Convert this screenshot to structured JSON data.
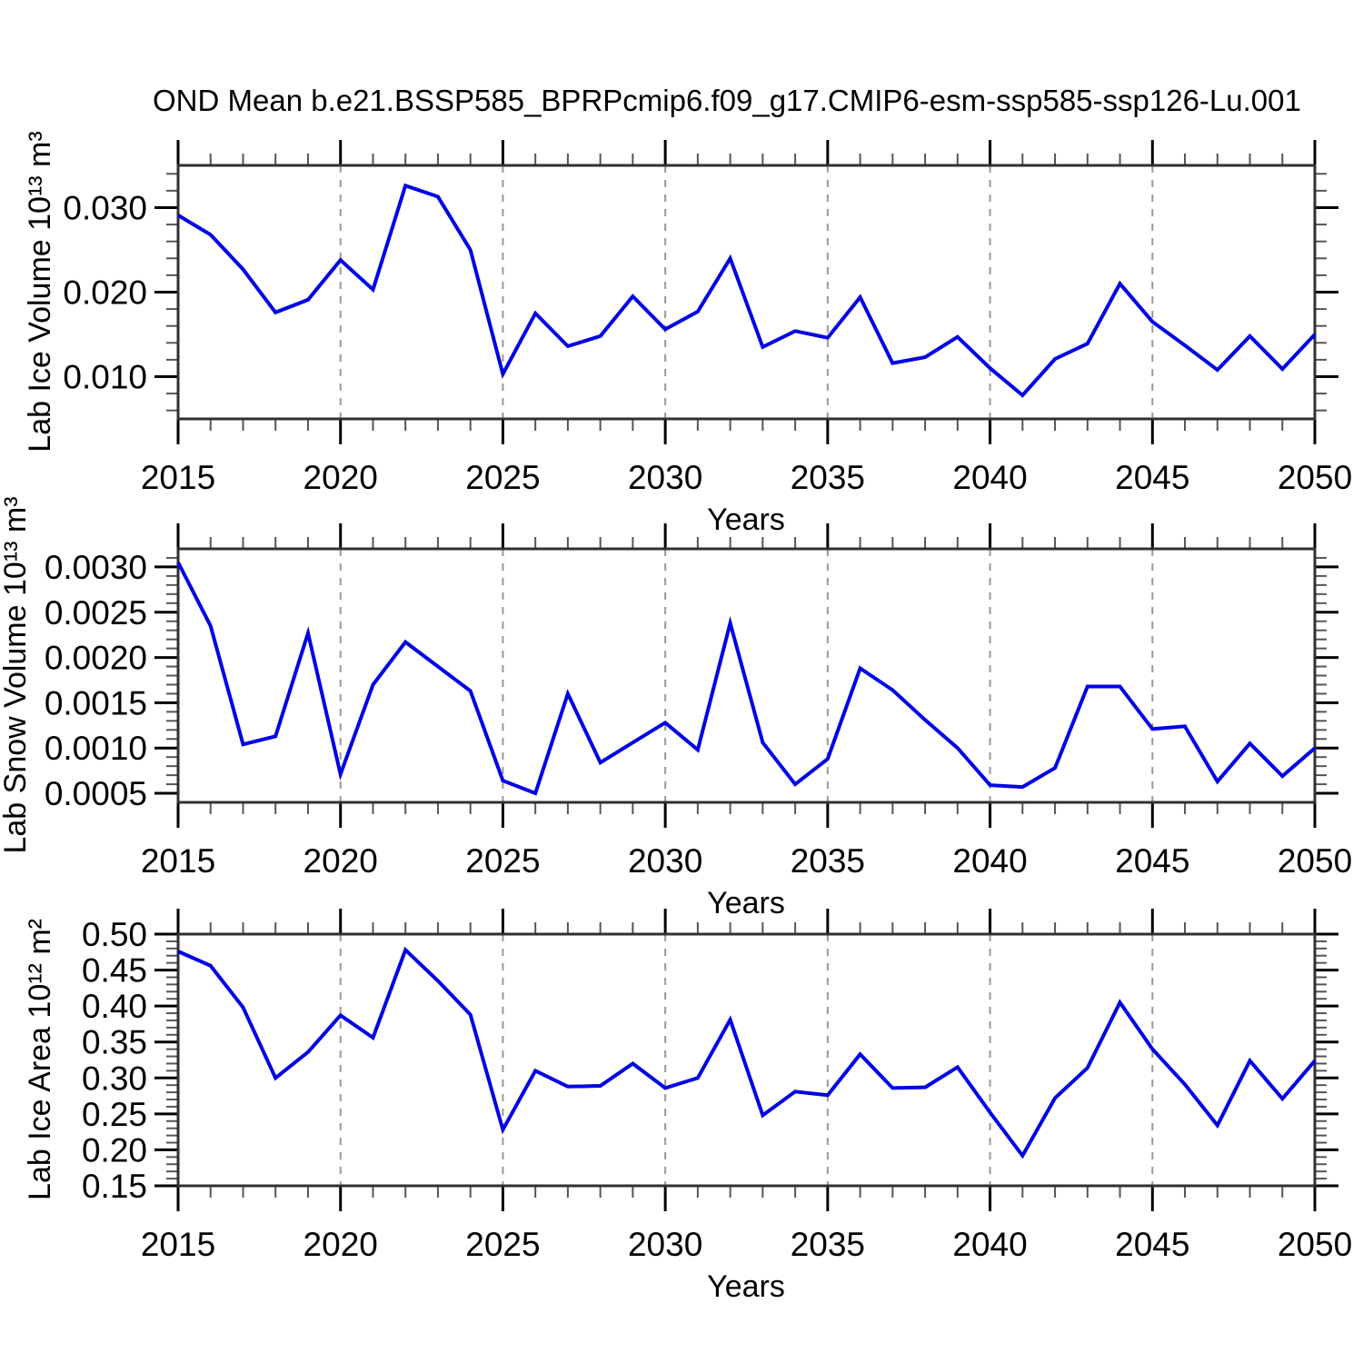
{
  "title": "OND Mean b.e21.BSSP585_BPRPcmip6.f09_g17.CMIP6-esm-ssp585-ssp126-Lu.001",
  "colors": {
    "line": "#0000e6",
    "gridline": "#999999",
    "axis": "#303030",
    "minor_tick": "#555555",
    "background": "#ffffff"
  },
  "chart_data": [
    {
      "type": "line",
      "ylabel": "Lab Ice Volume 10¹³ m³",
      "xlabel": "Years",
      "xlim": [
        2015,
        2050
      ],
      "ylim": [
        0.005,
        0.035
      ],
      "ytick_values": [
        0.01,
        0.02,
        0.03
      ],
      "ytick_labels": [
        "0.010",
        "0.020",
        "0.030"
      ],
      "y_minor_step": 0.002,
      "xtick_major_step": 5,
      "x_minor_step": 1,
      "gridlines_x": [
        2020,
        2025,
        2030,
        2035,
        2040,
        2045
      ],
      "x": [
        2015,
        2016,
        2017,
        2018,
        2019,
        2020,
        2021,
        2022,
        2023,
        2024,
        2025,
        2026,
        2027,
        2028,
        2029,
        2030,
        2031,
        2032,
        2033,
        2034,
        2035,
        2036,
        2037,
        2038,
        2039,
        2040,
        2041,
        2042,
        2043,
        2044,
        2045,
        2046,
        2047,
        2048,
        2049,
        2050
      ],
      "values": [
        0.0291,
        0.0268,
        0.0227,
        0.0176,
        0.0191,
        0.0238,
        0.0203,
        0.0326,
        0.0313,
        0.025,
        0.0103,
        0.0175,
        0.0136,
        0.0148,
        0.0195,
        0.0156,
        0.0177,
        0.024,
        0.0135,
        0.0154,
        0.0146,
        0.0194,
        0.0116,
        0.0123,
        0.0147,
        0.011,
        0.0078,
        0.0121,
        0.0139,
        0.021,
        0.0165,
        0.0137,
        0.0108,
        0.0148,
        0.0109,
        0.015
      ]
    },
    {
      "type": "line",
      "ylabel": "Lab Snow Volume 10¹³ m³",
      "xlabel": "Years",
      "xlim": [
        2015,
        2050
      ],
      "ylim": [
        0.0004,
        0.0032
      ],
      "ytick_values": [
        0.0005,
        0.001,
        0.0015,
        0.002,
        0.0025,
        0.003
      ],
      "ytick_labels": [
        "0.0005",
        "0.0010",
        "0.0015",
        "0.0020",
        "0.0025",
        "0.0030"
      ],
      "y_minor_step": 0.0001,
      "xtick_major_step": 5,
      "x_minor_step": 1,
      "gridlines_x": [
        2020,
        2025,
        2030,
        2035,
        2040,
        2045
      ],
      "x": [
        2015,
        2016,
        2017,
        2018,
        2019,
        2020,
        2021,
        2022,
        2023,
        2024,
        2025,
        2026,
        2027,
        2028,
        2029,
        2030,
        2031,
        2032,
        2033,
        2034,
        2035,
        2036,
        2037,
        2038,
        2039,
        2040,
        2041,
        2042,
        2043,
        2044,
        2045,
        2046,
        2047,
        2048,
        2049,
        2050
      ],
      "values": [
        0.00305,
        0.00235,
        0.00104,
        0.00113,
        0.00227,
        0.00071,
        0.0017,
        0.00217,
        0.0019,
        0.00163,
        0.00064,
        0.0005,
        0.0016,
        0.00084,
        0.00106,
        0.00128,
        0.00098,
        0.00238,
        0.00106,
        0.0006,
        0.00088,
        0.00188,
        0.00164,
        0.00131,
        0.001,
        0.00059,
        0.00057,
        0.00078,
        0.00168,
        0.00168,
        0.00121,
        0.00124,
        0.00063,
        0.00105,
        0.00069,
        0.001
      ]
    },
    {
      "type": "line",
      "ylabel": "Lab Ice Area 10¹² m²",
      "xlabel": "Years",
      "xlim": [
        2015,
        2050
      ],
      "ylim": [
        0.15,
        0.5
      ],
      "ytick_values": [
        0.15,
        0.2,
        0.25,
        0.3,
        0.35,
        0.4,
        0.45,
        0.5
      ],
      "ytick_labels": [
        "0.15",
        "0.20",
        "0.25",
        "0.30",
        "0.35",
        "0.40",
        "0.45",
        "0.50"
      ],
      "y_minor_step": 0.01,
      "xtick_major_step": 5,
      "x_minor_step": 1,
      "gridlines_x": [
        2020,
        2025,
        2030,
        2035,
        2040,
        2045
      ],
      "x": [
        2015,
        2016,
        2017,
        2018,
        2019,
        2020,
        2021,
        2022,
        2023,
        2024,
        2025,
        2026,
        2027,
        2028,
        2029,
        2030,
        2031,
        2032,
        2033,
        2034,
        2035,
        2036,
        2037,
        2038,
        2039,
        2040,
        2041,
        2042,
        2043,
        2044,
        2045,
        2046,
        2047,
        2048,
        2049,
        2050
      ],
      "values": [
        0.476,
        0.456,
        0.398,
        0.3,
        0.336,
        0.387,
        0.356,
        0.478,
        0.435,
        0.388,
        0.228,
        0.31,
        0.288,
        0.289,
        0.32,
        0.286,
        0.3,
        0.381,
        0.248,
        0.281,
        0.276,
        0.333,
        0.286,
        0.287,
        0.315,
        0.252,
        0.192,
        0.272,
        0.314,
        0.405,
        0.34,
        0.291,
        0.234,
        0.324,
        0.271,
        0.324
      ]
    }
  ]
}
